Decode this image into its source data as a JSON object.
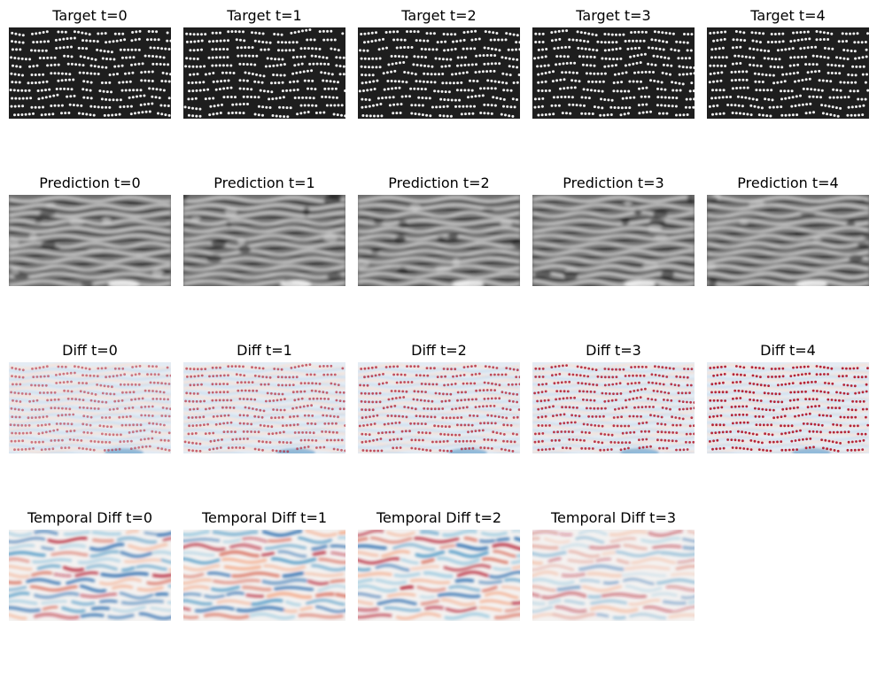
{
  "figure": {
    "rows": [
      {
        "name": "target",
        "colormap": "gray",
        "panels": [
          {
            "title": "Target t=0"
          },
          {
            "title": "Target t=1"
          },
          {
            "title": "Target t=2"
          },
          {
            "title": "Target t=3"
          },
          {
            "title": "Target t=4"
          }
        ]
      },
      {
        "name": "prediction",
        "colormap": "gray-blur",
        "panels": [
          {
            "title": "Prediction t=0"
          },
          {
            "title": "Prediction t=1"
          },
          {
            "title": "Prediction t=2"
          },
          {
            "title": "Prediction t=3"
          },
          {
            "title": "Prediction t=4"
          }
        ]
      },
      {
        "name": "diff",
        "colormap": "RdBu",
        "panels": [
          {
            "title": "Diff t=0"
          },
          {
            "title": "Diff t=1"
          },
          {
            "title": "Diff t=2"
          },
          {
            "title": "Diff t=3"
          },
          {
            "title": "Diff t=4"
          }
        ]
      },
      {
        "name": "temporal-diff",
        "colormap": "RdBu",
        "panels": [
          {
            "title": "Temporal Diff t=0"
          },
          {
            "title": "Temporal Diff t=1"
          },
          {
            "title": "Temporal Diff t=2"
          },
          {
            "title": "Temporal Diff t=3"
          }
        ]
      }
    ],
    "colors": {
      "target_bg": "#1e1e1e",
      "target_dot": "#f2f2f2",
      "diff_red": "#b2182b",
      "diff_blue": "#2166ac",
      "diff_bg": "#f7f7f7"
    }
  }
}
